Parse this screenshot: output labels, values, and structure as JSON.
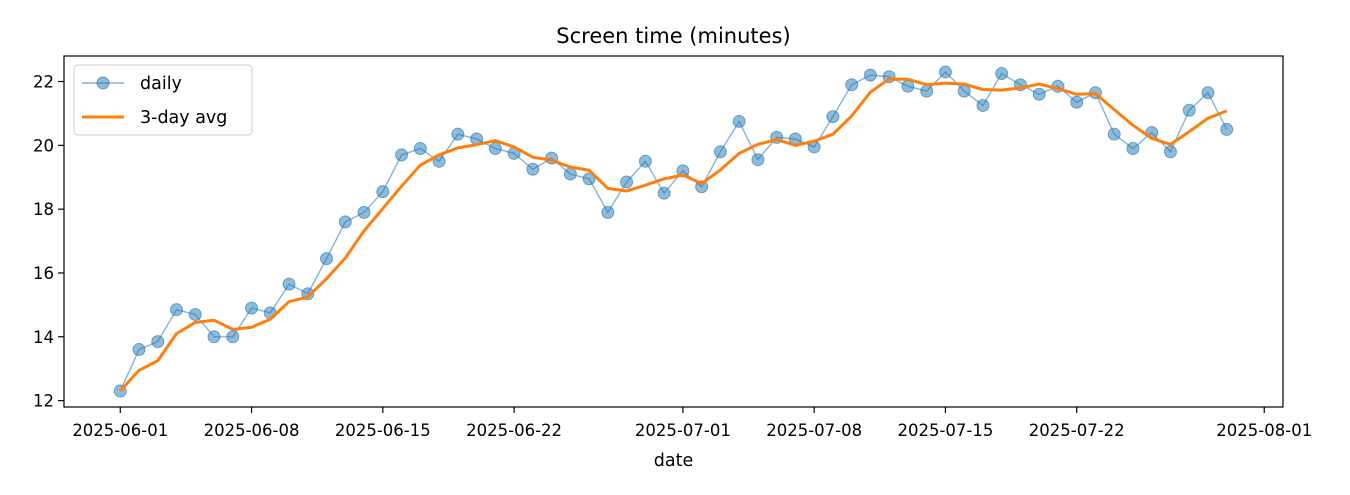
{
  "chart_data": {
    "type": "line",
    "title": "Screen time (minutes)",
    "xlabel": "date",
    "ylabel": "",
    "x_start": "2025-06-01",
    "x": [
      "2025-06-01",
      "2025-06-02",
      "2025-06-03",
      "2025-06-04",
      "2025-06-05",
      "2025-06-06",
      "2025-06-07",
      "2025-06-08",
      "2025-06-09",
      "2025-06-10",
      "2025-06-11",
      "2025-06-12",
      "2025-06-13",
      "2025-06-14",
      "2025-06-15",
      "2025-06-16",
      "2025-06-17",
      "2025-06-18",
      "2025-06-19",
      "2025-06-20",
      "2025-06-21",
      "2025-06-22",
      "2025-06-23",
      "2025-06-24",
      "2025-06-25",
      "2025-06-26",
      "2025-06-27",
      "2025-06-28",
      "2025-06-29",
      "2025-06-30",
      "2025-07-01",
      "2025-07-02",
      "2025-07-03",
      "2025-07-04",
      "2025-07-05",
      "2025-07-06",
      "2025-07-07",
      "2025-07-08",
      "2025-07-09",
      "2025-07-10",
      "2025-07-11",
      "2025-07-12",
      "2025-07-13",
      "2025-07-14",
      "2025-07-15",
      "2025-07-16",
      "2025-07-17",
      "2025-07-18",
      "2025-07-19",
      "2025-07-20",
      "2025-07-21",
      "2025-07-22",
      "2025-07-23",
      "2025-07-24",
      "2025-07-25",
      "2025-07-26",
      "2025-07-27",
      "2025-07-28",
      "2025-07-29",
      "2025-07-30"
    ],
    "series": [
      {
        "name": "daily",
        "color": "#1f77b4",
        "style": "line-with-circle-markers",
        "values": [
          12.3,
          13.6,
          13.85,
          14.85,
          14.7,
          14.0,
          14.0,
          14.9,
          14.75,
          15.65,
          15.35,
          16.45,
          17.6,
          17.9,
          18.55,
          19.7,
          19.9,
          19.5,
          20.35,
          20.2,
          19.9,
          19.75,
          19.25,
          19.6,
          19.1,
          18.95,
          17.9,
          18.85,
          19.5,
          18.5,
          19.2,
          18.7,
          19.8,
          20.75,
          19.55,
          20.25,
          20.2,
          19.95,
          20.9,
          21.9,
          22.2,
          22.15,
          21.85,
          21.7,
          22.3,
          21.7,
          21.25,
          22.25,
          21.9,
          21.6,
          21.85,
          21.35,
          21.65,
          20.35,
          19.9,
          20.4,
          19.8,
          21.1,
          21.65,
          20.5
        ]
      },
      {
        "name": "3-day avg",
        "color": "#ff7f0e",
        "style": "line",
        "values": [
          12.3,
          12.95,
          13.25,
          14.1,
          14.45,
          14.52,
          14.23,
          14.3,
          14.55,
          15.1,
          15.25,
          15.82,
          16.47,
          17.32,
          18.02,
          18.72,
          19.38,
          19.7,
          19.92,
          20.02,
          20.15,
          19.95,
          19.63,
          19.53,
          19.32,
          19.22,
          18.65,
          18.57,
          18.75,
          18.95,
          19.07,
          18.8,
          19.23,
          19.75,
          20.03,
          20.18,
          20.0,
          20.13,
          20.35,
          20.92,
          21.67,
          22.08,
          22.07,
          21.9,
          21.95,
          21.92,
          21.75,
          21.73,
          21.8,
          21.92,
          21.78,
          21.6,
          21.62,
          21.12,
          20.63,
          20.22,
          20.03,
          20.43,
          20.85,
          21.08
        ]
      }
    ],
    "xticks": [
      "2025-06-01",
      "2025-06-08",
      "2025-06-15",
      "2025-06-22",
      "2025-07-01",
      "2025-07-08",
      "2025-07-15",
      "2025-07-22",
      "2025-08-01"
    ],
    "xlim": [
      "2025-05-29",
      "2025-08-02"
    ],
    "yticks": [
      12,
      14,
      16,
      18,
      20,
      22
    ],
    "ylim": [
      11.8,
      22.8
    ],
    "grid": false,
    "legend": "top-left"
  }
}
